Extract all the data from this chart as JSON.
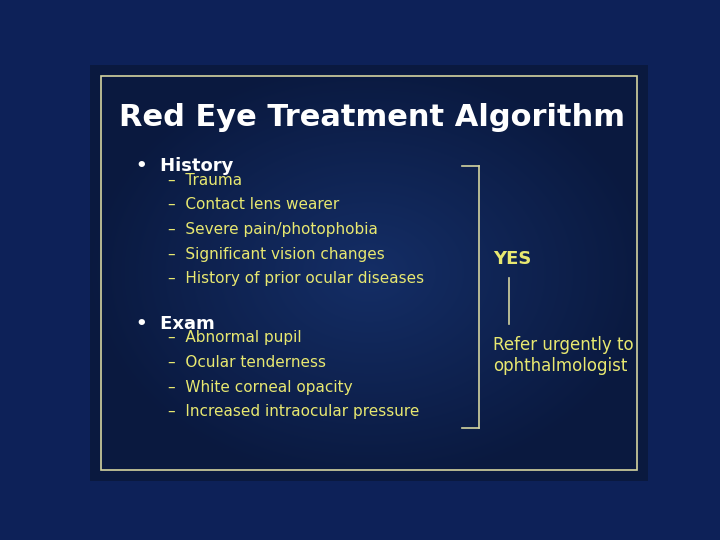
{
  "title": "Red Eye Treatment Algorithm",
  "background_color": "#0d2158",
  "inner_bg_color": "#0a1840",
  "border_color": "#d4d4a0",
  "text_color_white": "#ffffff",
  "text_color_yellow": "#e8e870",
  "title_fontsize": 22,
  "bullet_fontsize": 13,
  "sub_fontsize": 11,
  "yes_fontsize": 13,
  "refer_fontsize": 12,
  "bullet1": "History",
  "history_items": [
    "Trauma",
    "Contact lens wearer",
    "Severe pain/photophobia",
    "Significant vision changes",
    "History of prior ocular diseases"
  ],
  "bullet2": "Exam",
  "exam_items": [
    "Abnormal pupil",
    "Ocular tenderness",
    "White corneal opacity",
    "Increased intraocular pressure"
  ],
  "yes_label": "YES",
  "refer_label": "Refer urgently to\nophthalmologist"
}
